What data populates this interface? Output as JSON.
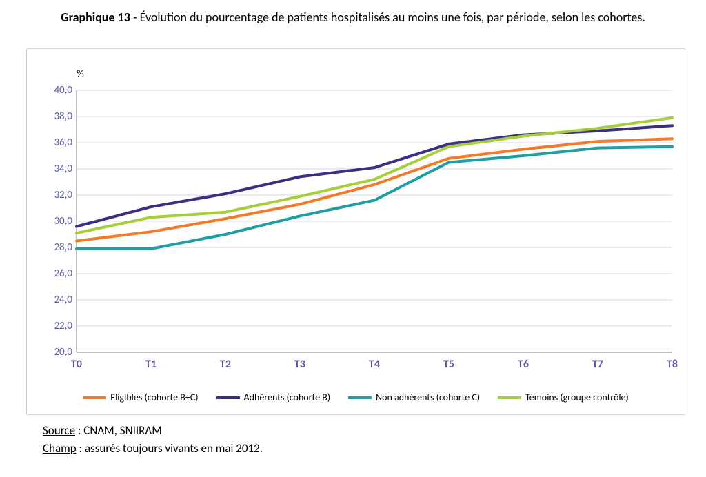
{
  "title": {
    "prefix_bold": "Graphique 13",
    "separator": " - ",
    "text": "Évolution du pourcentage de patients hospitalisés au moins une fois, par période, selon les cohortes."
  },
  "chart": {
    "type": "line",
    "y_unit_label": "%",
    "background_color": "#ffffff",
    "grid_color": "#d9d1e9",
    "axis_color": "#808080",
    "tick_label_color": "#5b5ea6",
    "x_tick_font_weight": "bold",
    "x_categories": [
      "T0",
      "T1",
      "T2",
      "T3",
      "T4",
      "T5",
      "T6",
      "T7",
      "T8"
    ],
    "ylim": [
      20.0,
      40.0
    ],
    "ytick_step": 2.0,
    "y_tick_labels": [
      "20,0",
      "22,0",
      "24,0",
      "26,0",
      "28,0",
      "30,0",
      "32,0",
      "34,0",
      "36,0",
      "38,0",
      "40,0"
    ],
    "line_width": 4,
    "series": [
      {
        "id": "eligibles",
        "label": "Eligibles (cohorte B+C)",
        "color": "#f47a2a",
        "values": [
          28.5,
          29.2,
          30.2,
          31.3,
          32.8,
          34.8,
          35.5,
          36.1,
          36.3
        ]
      },
      {
        "id": "adherents",
        "label": "Adhérents (cohorte B)",
        "color": "#3b2e83",
        "values": [
          29.6,
          31.1,
          32.1,
          33.4,
          34.1,
          35.9,
          36.6,
          36.9,
          37.3
        ]
      },
      {
        "id": "non_adherents",
        "label": "Non adhérents (cohorte C)",
        "color": "#1f9ea3",
        "values": [
          27.9,
          27.9,
          29.0,
          30.4,
          31.6,
          34.5,
          35.0,
          35.6,
          35.7
        ]
      },
      {
        "id": "temoins",
        "label": "Témoins (groupe contrôle)",
        "color": "#a6ce39",
        "values": [
          29.1,
          30.3,
          30.7,
          31.9,
          33.2,
          35.7,
          36.5,
          37.1,
          37.9
        ]
      }
    ]
  },
  "notes": {
    "source_label": "Source",
    "source_text": "CNAM, SNIIRAM",
    "champ_label": "Champ",
    "champ_text": "assurés toujours vivants en mai 2012."
  }
}
